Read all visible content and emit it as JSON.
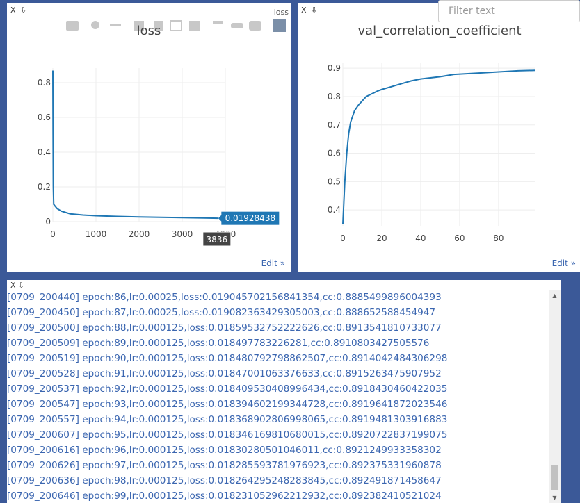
{
  "filter_placeholder": "Filter text",
  "panes": [
    {
      "close": "X",
      "download": "⇩",
      "title": "loss",
      "edit": "Edit »"
    },
    {
      "close": "X",
      "download": "⇩",
      "edit": "Edit »"
    }
  ],
  "chart_data": [
    {
      "type": "line",
      "title": "loss",
      "x": [
        0,
        5,
        10,
        20,
        50,
        100,
        200,
        400,
        700,
        1000,
        1500,
        2000,
        2500,
        3000,
        3500,
        3836
      ],
      "series": [
        {
          "color": "#1f77b4",
          "values": [
            0.87,
            0.5,
            0.2,
            0.1,
            0.09,
            0.075,
            0.06,
            0.045,
            0.038,
            0.034,
            0.03,
            0.027,
            0.025,
            0.023,
            0.021,
            0.01928438
          ]
        }
      ],
      "xlim": [
        0,
        4000
      ],
      "xticks": [
        0,
        1000,
        2000,
        3000,
        4000
      ],
      "ylim": [
        0,
        0.884
      ],
      "yticks": [
        0,
        0.2,
        0.4,
        0.6,
        0.8
      ],
      "grid": true
    },
    {
      "type": "line",
      "title": "val_correlation_coefficient",
      "x": [
        0,
        1,
        2,
        3,
        4,
        5,
        6,
        8,
        10,
        12,
        15,
        18,
        20,
        25,
        30,
        35,
        40,
        50,
        57,
        70,
        80,
        90,
        99
      ],
      "series": [
        {
          "color": "#1f77b4",
          "values": [
            0.35,
            0.5,
            0.6,
            0.67,
            0.71,
            0.73,
            0.75,
            0.77,
            0.785,
            0.8,
            0.81,
            0.82,
            0.825,
            0.835,
            0.845,
            0.855,
            0.862,
            0.87,
            0.878,
            0.883,
            0.887,
            0.891,
            0.8924
          ]
        }
      ],
      "xlim": [
        0,
        99
      ],
      "xticks": [
        0,
        20,
        40,
        60,
        80
      ],
      "ylim": [
        0.344,
        0.92
      ],
      "yticks": [
        0.4,
        0.5,
        0.6,
        0.7,
        0.8,
        0.9
      ],
      "grid": true
    }
  ],
  "log_pane": {
    "close": "X",
    "download": "⇩",
    "lines": [
      "[0709_200440] epoch:86,lr:0.00025,loss:0.019045702156841354,cc:0.8885499896004393",
      "[0709_200450] epoch:87,lr:0.00025,loss:0.019082363429305003,cc:0.888652588454947",
      "[0709_200500] epoch:88,lr:0.000125,loss:0.01859532752222626,cc:0.8913541810733077",
      "[0709_200509] epoch:89,lr:0.000125,loss:0.018497783226281,cc:0.8910803427505576",
      "[0709_200519] epoch:90,lr:0.000125,loss:0.018480792798862507,cc:0.8914042484306298",
      "[0709_200528] epoch:91,lr:0.000125,loss:0.01847001063376633,cc:0.8915263475907952",
      "[0709_200537] epoch:92,lr:0.000125,loss:0.018409530408996434,cc:0.8918430460422035",
      "[0709_200547] epoch:93,lr:0.000125,loss:0.018394602199344728,cc:0.8919641872023546",
      "[0709_200557] epoch:94,lr:0.000125,loss:0.018368902806998065,cc:0.8919481303916883",
      "[0709_200607] epoch:95,lr:0.000125,loss:0.018346169810680015,cc:0.8920722837199075",
      "[0709_200616] epoch:96,lr:0.000125,loss:0.01830280501046011,cc:0.8921249933358302",
      "[0709_200626] epoch:97,lr:0.000125,loss:0.018285593781976923,cc:0.892375331960878",
      "[0709_200636] epoch:98,lr:0.000125,loss:0.018264295248283845,cc:0.892491871458647",
      "[0709_200646] epoch:99,lr:0.000125,loss:0.018231052962212932,cc:0.892382410521024"
    ]
  }
}
